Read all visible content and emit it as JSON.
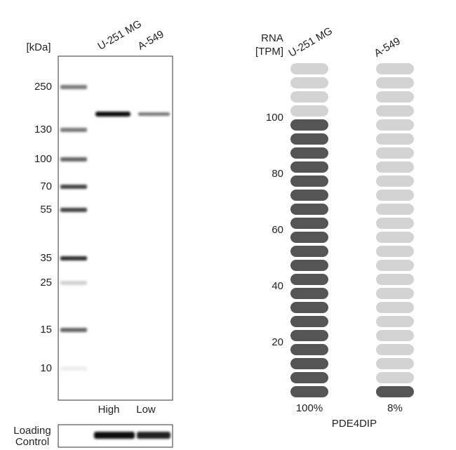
{
  "blot": {
    "unit_label": "[kDa]",
    "lanes": [
      "U-251 MG",
      "A-549"
    ],
    "markers": [
      250,
      130,
      100,
      70,
      55,
      35,
      25,
      15,
      10
    ],
    "levels": [
      "High",
      "Low"
    ],
    "loading_control": [
      "Loading",
      "Control"
    ]
  },
  "chart_data": {
    "type": "bar",
    "y_label": [
      "RNA",
      "[TPM]"
    ],
    "categories": [
      "U-251 MG",
      "A-549"
    ],
    "values": [
      100,
      8
    ],
    "value_labels": [
      "100%",
      "8%"
    ],
    "xlabel": "PDE4DIP",
    "ylim": [
      0,
      120
    ],
    "yticks": [
      20,
      40,
      60,
      80,
      100
    ],
    "color": "#555555",
    "empty_color": "#d3d3d3"
  }
}
